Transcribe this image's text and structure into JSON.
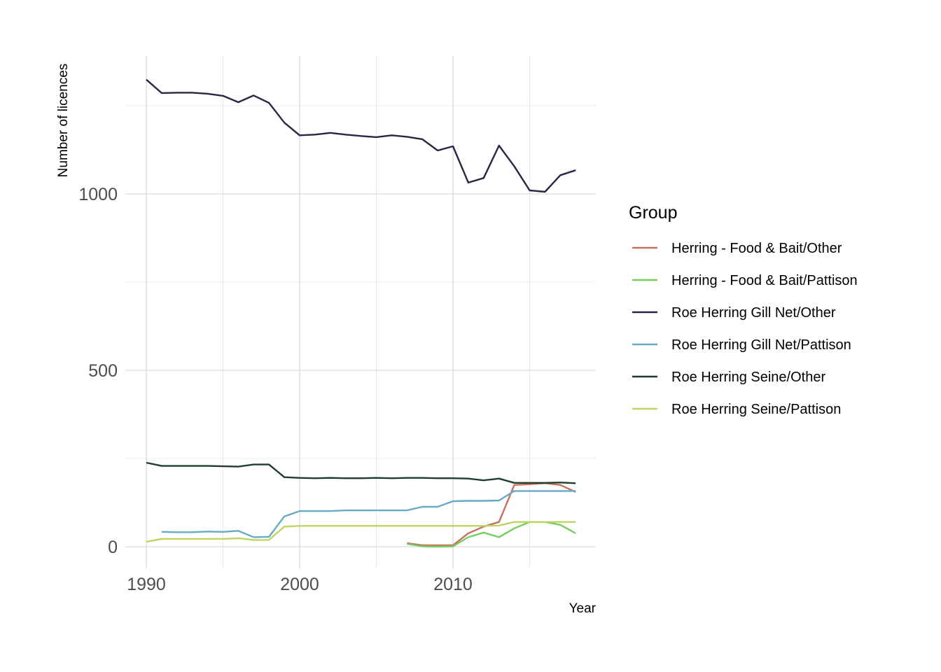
{
  "chart_data": {
    "type": "line",
    "xlabel": "Year",
    "ylabel": "Number of licences",
    "xlim": [
      1990,
      2018
    ],
    "ylim": [
      0,
      1330
    ],
    "x_ticks": [
      1990,
      2000,
      2010
    ],
    "y_ticks": [
      0,
      500,
      1000
    ],
    "grid": true,
    "legend": {
      "title": "Group",
      "position": "right"
    },
    "series": [
      {
        "name": "Herring - Food & Bait/Other",
        "color": "#c8705e",
        "points": [
          [
            2007,
            10
          ],
          [
            2008,
            4
          ],
          [
            2009,
            4
          ],
          [
            2010,
            4
          ],
          [
            2011,
            38
          ],
          [
            2012,
            57
          ],
          [
            2013,
            70
          ],
          [
            2014,
            175
          ],
          [
            2015,
            177
          ],
          [
            2016,
            180
          ],
          [
            2017,
            175
          ],
          [
            2018,
            155
          ]
        ]
      },
      {
        "name": "Herring - Food & Bait/Pattison",
        "color": "#77cc5f",
        "points": [
          [
            2007,
            8
          ],
          [
            2008,
            1
          ],
          [
            2009,
            0
          ],
          [
            2010,
            1
          ],
          [
            2011,
            27
          ],
          [
            2012,
            40
          ],
          [
            2013,
            27
          ],
          [
            2014,
            52
          ],
          [
            2015,
            70
          ],
          [
            2016,
            70
          ],
          [
            2017,
            62
          ],
          [
            2018,
            38
          ]
        ]
      },
      {
        "name": "Roe Herring Gill Net/Other",
        "color": "#2f2344",
        "points": [
          [
            1990,
            1324
          ],
          [
            1991,
            1286
          ],
          [
            1992,
            1287
          ],
          [
            1993,
            1287
          ],
          [
            1994,
            1284
          ],
          [
            1995,
            1278
          ],
          [
            1996,
            1260
          ],
          [
            1997,
            1279
          ],
          [
            1998,
            1258
          ],
          [
            1999,
            1202
          ],
          [
            2000,
            1166
          ],
          [
            2001,
            1168
          ],
          [
            2002,
            1173
          ],
          [
            2003,
            1168
          ],
          [
            2004,
            1164
          ],
          [
            2005,
            1161
          ],
          [
            2006,
            1166
          ],
          [
            2007,
            1162
          ],
          [
            2008,
            1155
          ],
          [
            2009,
            1123
          ],
          [
            2010,
            1135
          ],
          [
            2011,
            1032
          ],
          [
            2012,
            1045
          ],
          [
            2013,
            1137
          ],
          [
            2014,
            1078
          ],
          [
            2015,
            1010
          ],
          [
            2016,
            1006
          ],
          [
            2017,
            1053
          ],
          [
            2018,
            1067
          ]
        ]
      },
      {
        "name": "Roe Herring Gill Net/Pattison",
        "color": "#67aac6",
        "points": [
          [
            1991,
            42
          ],
          [
            1992,
            41
          ],
          [
            1993,
            41
          ],
          [
            1994,
            43
          ],
          [
            1995,
            42
          ],
          [
            1996,
            45
          ],
          [
            1997,
            27
          ],
          [
            1998,
            28
          ],
          [
            1999,
            86
          ],
          [
            2000,
            101
          ],
          [
            2001,
            101
          ],
          [
            2002,
            101
          ],
          [
            2003,
            103
          ],
          [
            2004,
            103
          ],
          [
            2005,
            103
          ],
          [
            2006,
            103
          ],
          [
            2007,
            103
          ],
          [
            2008,
            113
          ],
          [
            2009,
            113
          ],
          [
            2010,
            129
          ],
          [
            2011,
            130
          ],
          [
            2012,
            130
          ],
          [
            2013,
            131
          ],
          [
            2014,
            158
          ],
          [
            2015,
            158
          ],
          [
            2016,
            158
          ],
          [
            2017,
            158
          ],
          [
            2018,
            158
          ]
        ]
      },
      {
        "name": "Roe Herring Seine/Other",
        "color": "#1f3d2a",
        "points": [
          [
            1990,
            238
          ],
          [
            1991,
            229
          ],
          [
            1992,
            229
          ],
          [
            1993,
            229
          ],
          [
            1994,
            229
          ],
          [
            1995,
            228
          ],
          [
            1996,
            227
          ],
          [
            1997,
            233
          ],
          [
            1998,
            233
          ],
          [
            1999,
            197
          ],
          [
            2000,
            195
          ],
          [
            2001,
            194
          ],
          [
            2002,
            195
          ],
          [
            2003,
            194
          ],
          [
            2004,
            194
          ],
          [
            2005,
            195
          ],
          [
            2006,
            194
          ],
          [
            2007,
            195
          ],
          [
            2008,
            195
          ],
          [
            2009,
            194
          ],
          [
            2010,
            194
          ],
          [
            2011,
            193
          ],
          [
            2012,
            188
          ],
          [
            2013,
            193
          ],
          [
            2014,
            181
          ],
          [
            2015,
            181
          ],
          [
            2016,
            181
          ],
          [
            2017,
            182
          ],
          [
            2018,
            180
          ]
        ]
      },
      {
        "name": "Roe Herring Seine/Pattison",
        "color": "#bdd464",
        "points": [
          [
            1990,
            14
          ],
          [
            1991,
            22
          ],
          [
            1992,
            22
          ],
          [
            1993,
            22
          ],
          [
            1994,
            22
          ],
          [
            1995,
            22
          ],
          [
            1996,
            24
          ],
          [
            1997,
            19
          ],
          [
            1998,
            19
          ],
          [
            1999,
            57
          ],
          [
            2000,
            59
          ],
          [
            2001,
            59
          ],
          [
            2002,
            59
          ],
          [
            2003,
            59
          ],
          [
            2004,
            59
          ],
          [
            2005,
            59
          ],
          [
            2006,
            59
          ],
          [
            2007,
            59
          ],
          [
            2008,
            59
          ],
          [
            2009,
            59
          ],
          [
            2010,
            59
          ],
          [
            2011,
            59
          ],
          [
            2012,
            59
          ],
          [
            2013,
            60
          ],
          [
            2014,
            70
          ],
          [
            2015,
            70
          ],
          [
            2016,
            70
          ],
          [
            2017,
            70
          ],
          [
            2018,
            70
          ]
        ]
      }
    ]
  }
}
